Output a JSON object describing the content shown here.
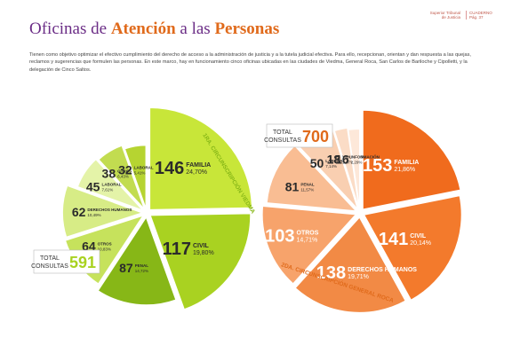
{
  "page": {
    "title_part1": "Oficinas de ",
    "title_part2": "Atención",
    "title_part3": " a las ",
    "title_part4": "Personas",
    "header_org": "Superior Tribunal de Justicia",
    "header_ref": "CUADERNO Pág. 37",
    "intro": "Tienen como objetivo optimizar el efectivo cumplimiento del derecho de acceso a la administración de justicia y a la tutela judicial efectiva. Para ello, recepcionan, orientan y dan respuesta a las quejas, reclamos y sugerencias que formulen las personas. En este marco, hay en funcionamiento cinco oficinas ubicadas en las ciudades de Viedma, General Roca, San Carlos de Bariloche y Cipolletti, y la delegación de Cinco Saltos."
  },
  "chart_data": [
    {
      "type": "pie",
      "title": "1RA. CIRCUNSCRIPCIÓN VIEDMA",
      "total_label_1": "TOTAL",
      "total_label_2": "CONSULTAS",
      "total_value": "591",
      "slices": [
        {
          "value": 146,
          "label": "FAMILIA",
          "pct": "24,70%"
        },
        {
          "value": 117,
          "label": "CIVIL",
          "pct": "19,80%"
        },
        {
          "value": 87,
          "label": "PENAL",
          "pct": "14,72%"
        },
        {
          "value": 64,
          "label": "OTROS",
          "pct": "10,83%"
        },
        {
          "value": 62,
          "label": "DERECHOS HUMANOS",
          "pct": "10,49%"
        },
        {
          "value": 45,
          "label": "LABORAL",
          "pct": "7,61%"
        },
        {
          "value": 38,
          "label": "OTROS",
          "pct": "6,43%"
        },
        {
          "value": 32,
          "label": "LABORAL",
          "pct": "5,41%"
        }
      ],
      "colors": [
        "#c8e639",
        "#a9d221",
        "#87b717",
        "#c6e25c",
        "#d7ec86",
        "#e4f3a8",
        "#c2dc50",
        "#b6d431"
      ]
    },
    {
      "type": "pie",
      "title": "2DA. CIRCUNSCRIPCIÓN GENERAL ROCA",
      "total_label_1": "TOTAL",
      "total_label_2": "CONSULTAS",
      "total_value": "700",
      "slices": [
        {
          "value": 153,
          "label": "FAMILIA",
          "pct": "21,86%"
        },
        {
          "value": 141,
          "label": "CIVIL",
          "pct": "20,14%"
        },
        {
          "value": 138,
          "label": "DERECHOS HUMANOS",
          "pct": "19,71%"
        },
        {
          "value": 103,
          "label": "OTROS",
          "pct": "14,71%"
        },
        {
          "value": 81,
          "label": "PENAL",
          "pct": "11,57%"
        },
        {
          "value": 50,
          "label": "LABORAL",
          "pct": "7,14%"
        },
        {
          "value": 18,
          "label": "VIOLENCIA",
          "pct": "2,57%"
        },
        {
          "value": 16,
          "label": "INFORMACIÓN",
          "pct": "2,29%"
        }
      ],
      "colors": [
        "#f06b1d",
        "#f37a2c",
        "#f28a45",
        "#f7a36b",
        "#f9bd93",
        "#f9cfb1",
        "#fbdcc6",
        "#fde8d9"
      ]
    }
  ]
}
